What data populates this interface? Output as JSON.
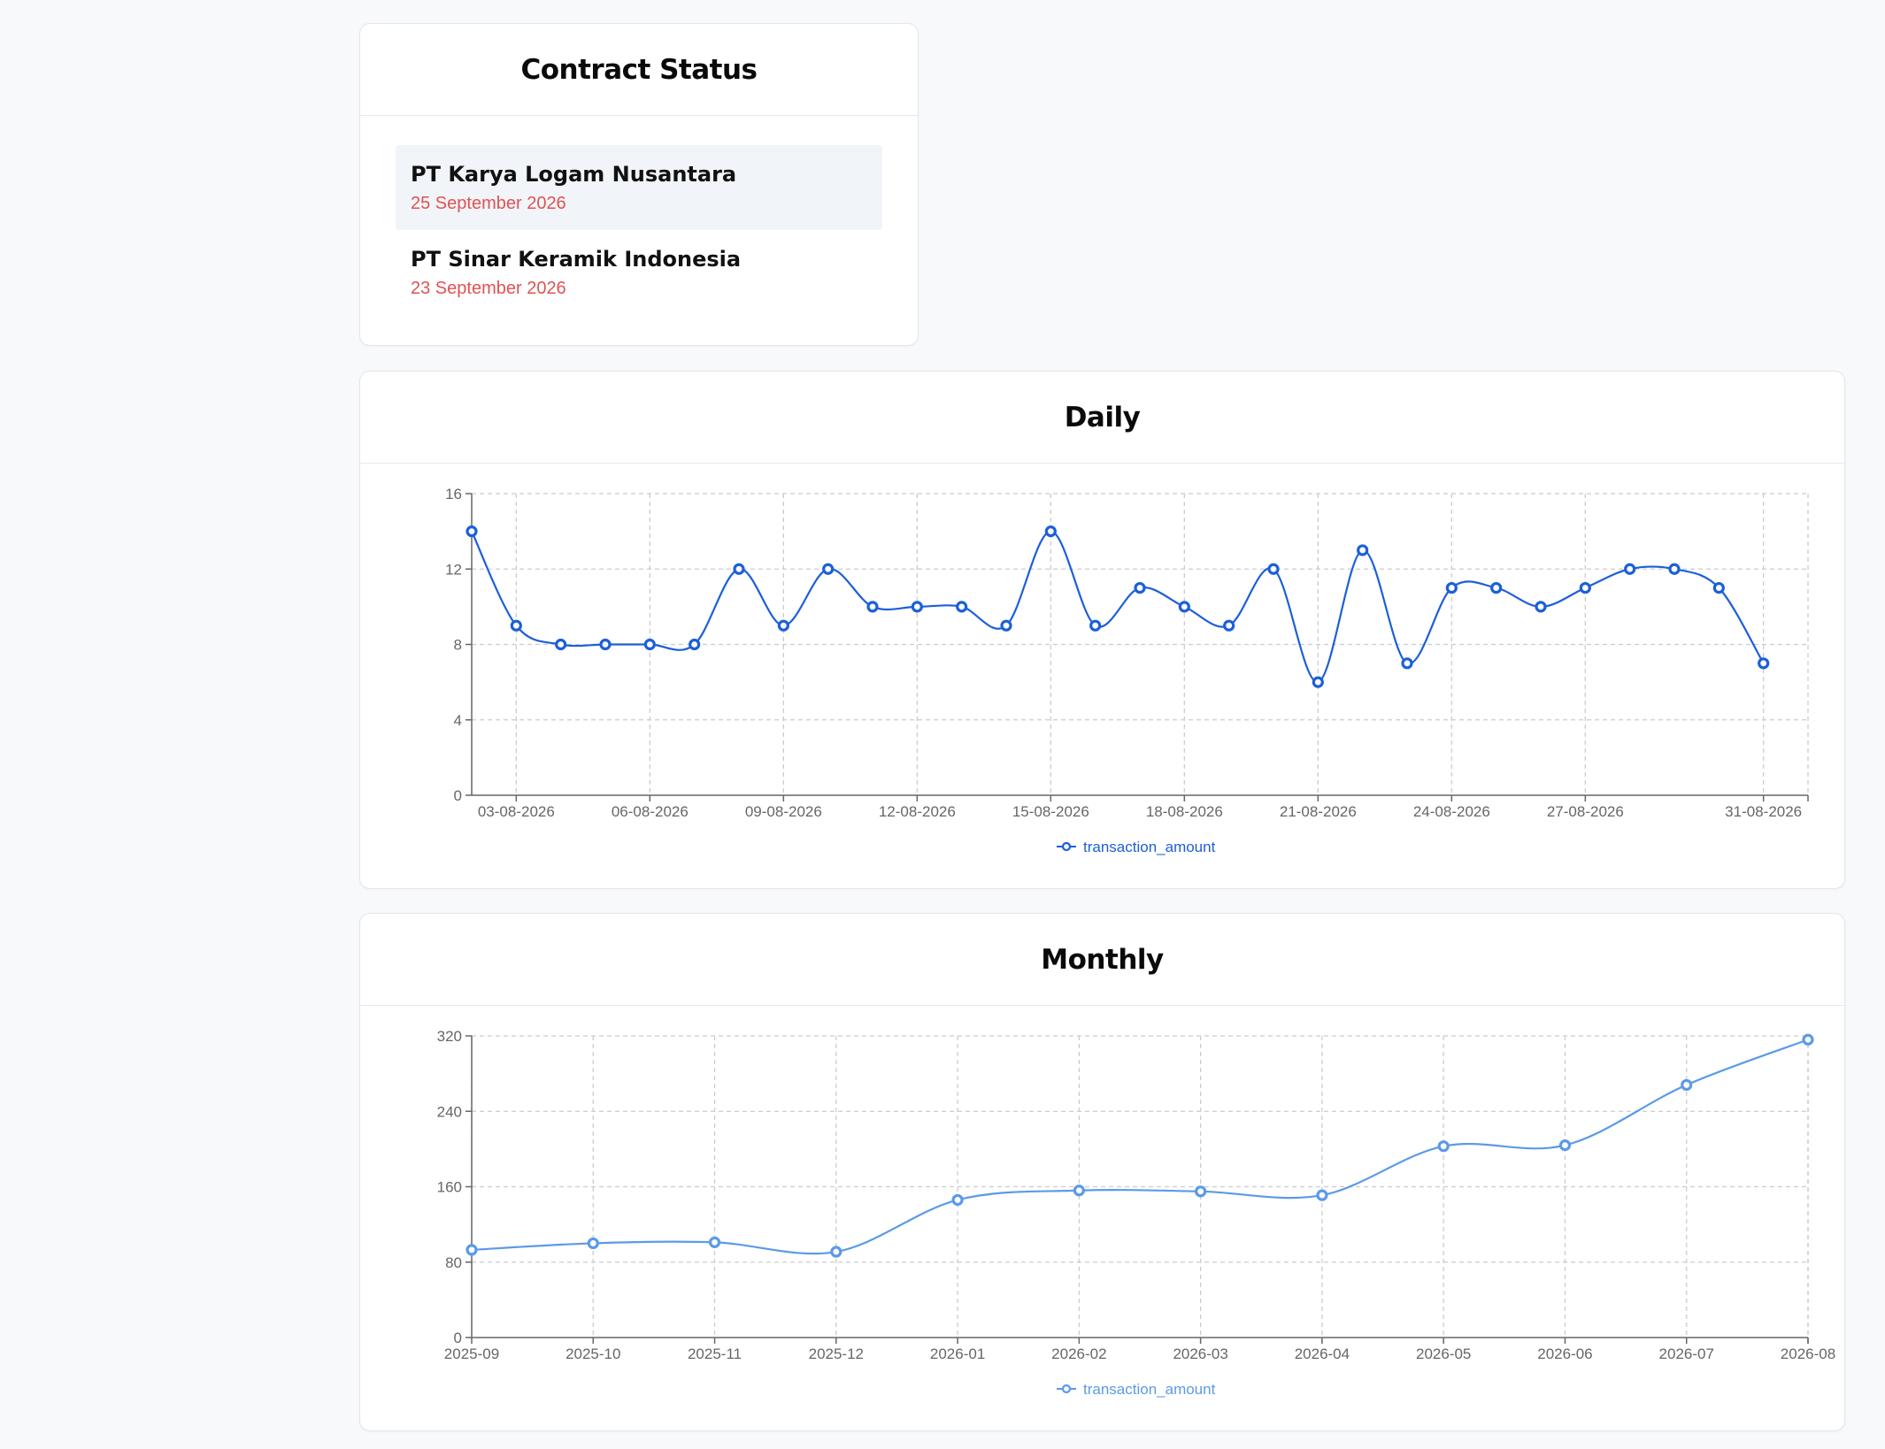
{
  "contract_status": {
    "title": "Contract Status",
    "items": [
      {
        "company": "PT Karya Logam Nusantara",
        "date": "25 September 2026",
        "active": true
      },
      {
        "company": "PT Sinar Keramik Indonesia",
        "date": "23 September 2026",
        "active": false
      }
    ],
    "date_color": "#e05252"
  },
  "chart_data": [
    {
      "type": "line",
      "title": "Daily",
      "x": [
        "02-08-2026",
        "03-08-2026",
        "04-08-2026",
        "05-08-2026",
        "06-08-2026",
        "07-08-2026",
        "08-08-2026",
        "09-08-2026",
        "10-08-2026",
        "11-08-2026",
        "12-08-2026",
        "13-08-2026",
        "14-08-2026",
        "15-08-2026",
        "16-08-2026",
        "17-08-2026",
        "18-08-2026",
        "19-08-2026",
        "20-08-2026",
        "21-08-2026",
        "22-08-2026",
        "23-08-2026",
        "24-08-2026",
        "25-08-2026",
        "26-08-2026",
        "27-08-2026",
        "28-08-2026",
        "29-08-2026",
        "30-08-2026",
        "31-08-2026",
        "01-09-2026"
      ],
      "x_tick_labels": [
        "03-08-2026",
        "06-08-2026",
        "09-08-2026",
        "12-08-2026",
        "15-08-2026",
        "18-08-2026",
        "21-08-2026",
        "24-08-2026",
        "27-08-2026",
        "31-08-2026"
      ],
      "series": [
        {
          "name": "transaction_amount",
          "color": "#1c5fd9",
          "values": [
            14,
            9,
            8,
            8,
            8,
            8,
            12,
            9,
            12,
            10,
            10,
            10,
            9,
            14,
            9,
            11,
            10,
            9,
            12,
            6,
            13,
            7,
            11,
            11,
            10,
            11,
            12,
            12,
            11,
            7,
            null
          ]
        }
      ],
      "ylim": [
        0,
        16
      ],
      "yticks": [
        0,
        4,
        8,
        12,
        16
      ],
      "grid": true,
      "legend": "bottom-center"
    },
    {
      "type": "line",
      "title": "Monthly",
      "x": [
        "2025-09",
        "2025-10",
        "2025-11",
        "2025-12",
        "2026-01",
        "2026-02",
        "2026-03",
        "2026-04",
        "2026-05",
        "2026-06",
        "2026-07",
        "2026-08"
      ],
      "x_tick_labels": [
        "2025-09",
        "2025-10",
        "2025-11",
        "2025-12",
        "2026-01",
        "2026-02",
        "2026-03",
        "2026-04",
        "2026-05",
        "2026-06",
        "2026-07",
        "2026-08"
      ],
      "series": [
        {
          "name": "transaction_amount",
          "color": "#5b9ae8",
          "values": [
            93,
            100,
            101,
            91,
            146,
            156,
            155,
            151,
            203,
            204,
            268,
            316
          ]
        }
      ],
      "ylim": [
        0,
        320
      ],
      "yticks": [
        0,
        80,
        160,
        240,
        320
      ],
      "grid": true,
      "legend": "bottom-center"
    }
  ]
}
